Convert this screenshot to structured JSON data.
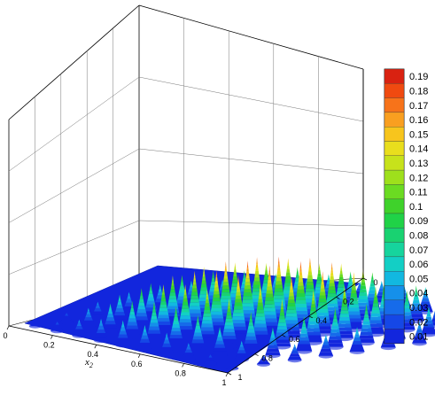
{
  "chart_data": {
    "type": "surface-3d",
    "title": "",
    "x_axis": {
      "label": "x",
      "label_subscript": "2",
      "ticks": [
        "0",
        "0.2",
        "0.4",
        "0.6",
        "0.8",
        "1"
      ],
      "range": [
        0,
        1
      ]
    },
    "y_axis": {
      "label": "x",
      "label_subscript": "1",
      "ticks": [
        "0",
        "0.2",
        "0.4",
        "0.6",
        "0.8",
        "1"
      ],
      "range": [
        0,
        1
      ]
    },
    "z_range": [
      0,
      0.2
    ],
    "grid": true,
    "legend": {
      "placement": "right",
      "levels": [
        "0.19",
        "0.18",
        "0.17",
        "0.16",
        "0.15",
        "0.14",
        "0.13",
        "0.12",
        "0.11",
        "0.1",
        "0.09",
        "0.08",
        "0.07",
        "0.06",
        "0.05",
        "0.04",
        "0.03",
        "0.02",
        "0.01"
      ],
      "colors": [
        "#d92211",
        "#f04a10",
        "#f7731a",
        "#f99f20",
        "#f7c51d",
        "#e9de1d",
        "#c7e21b",
        "#9ee01c",
        "#6bdb22",
        "#3fd22b",
        "#20d247",
        "#19d271",
        "#16d49d",
        "#13cfc5",
        "#12b8e0",
        "#1590ea",
        "#166bea",
        "#1547e6",
        "#1226dd"
      ]
    },
    "peak_grid_n": 10,
    "max_value": 0.2
  }
}
